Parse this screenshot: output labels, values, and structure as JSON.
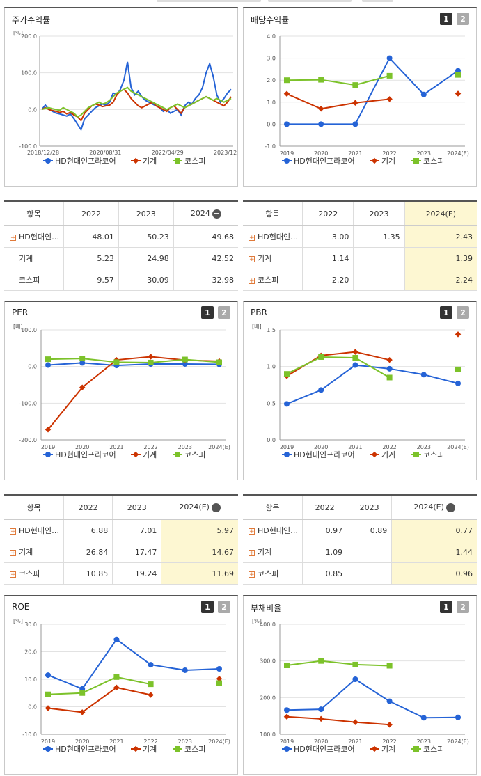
{
  "colors": {
    "hd": "#2563d6",
    "mach": "#cc3300",
    "kospi": "#7cc22a"
  },
  "panels": {
    "stock": {
      "title": "주가수익률"
    },
    "div": {
      "title": "배당수익률",
      "btn1": "1",
      "btn2": "2"
    },
    "per": {
      "title": "PER",
      "btn1": "1",
      "btn2": "2"
    },
    "pbr": {
      "title": "PBR",
      "btn1": "1",
      "btn2": "2"
    },
    "roe": {
      "title": "ROE",
      "btn1": "1",
      "btn2": "2"
    },
    "debt": {
      "title": "부채비율",
      "btn1": "1",
      "btn2": "2"
    }
  },
  "legend": {
    "hd": "HD현대인프라코어",
    "mach": "기계",
    "kospi": "코스피"
  },
  "tables": {
    "stock": {
      "h0": "항목",
      "h1": "2022",
      "h2": "2023",
      "h3": "2024",
      "rows": [
        {
          "name": "HD현대인…",
          "v1": "48.01",
          "v2": "50.23",
          "v3": "49.68"
        },
        {
          "name": "기계",
          "v1": "5.23",
          "v2": "24.98",
          "v3": "42.52"
        },
        {
          "name": "코스피",
          "v1": "9.57",
          "v2": "30.09",
          "v3": "32.98"
        }
      ]
    },
    "div": {
      "h0": "항목",
      "h1": "2022",
      "h2": "2023",
      "h3": "2024(E)",
      "rows": [
        {
          "name": "HD현대인…",
          "v1": "3.00",
          "v2": "1.35",
          "v3": "2.43"
        },
        {
          "name": "기계",
          "v1": "1.14",
          "v2": "",
          "v3": "1.39"
        },
        {
          "name": "코스피",
          "v1": "2.20",
          "v2": "",
          "v3": "2.24"
        }
      ]
    },
    "per": {
      "h0": "항목",
      "h1": "2022",
      "h2": "2023",
      "h3": "2024(E)",
      "rows": [
        {
          "name": "HD현대인…",
          "v1": "6.88",
          "v2": "7.01",
          "v3": "5.97"
        },
        {
          "name": "기계",
          "v1": "26.84",
          "v2": "17.47",
          "v3": "14.67"
        },
        {
          "name": "코스피",
          "v1": "10.85",
          "v2": "19.24",
          "v3": "11.69"
        }
      ]
    },
    "pbr": {
      "h0": "항목",
      "h1": "2022",
      "h2": "2023",
      "h3": "2024(E)",
      "rows": [
        {
          "name": "HD현대인…",
          "v1": "0.97",
          "v2": "0.89",
          "v3": "0.77"
        },
        {
          "name": "기계",
          "v1": "1.09",
          "v2": "",
          "v3": "1.44"
        },
        {
          "name": "코스피",
          "v1": "0.85",
          "v2": "",
          "v3": "0.96"
        }
      ]
    }
  },
  "chart_data": [
    {
      "id": "stock",
      "type": "line",
      "title": "주가수익률",
      "unit": "[%]",
      "ylim": [
        -100,
        200
      ],
      "yticks": [
        "200.0",
        "100.0",
        "0.0",
        "-100.0"
      ],
      "xticks": [
        "2018/12/28",
        "2020/08/31",
        "2022/04/29",
        "2023/12/28"
      ],
      "series": [
        {
          "name": "HD현대인프라코어",
          "values": [
            0,
            12,
            0,
            -5,
            -10,
            -12,
            -15,
            -18,
            -12,
            -25,
            -40,
            -55,
            -25,
            -15,
            -5,
            5,
            10,
            15,
            12,
            20,
            45,
            40,
            55,
            80,
            130,
            60,
            40,
            50,
            35,
            25,
            20,
            15,
            10,
            5,
            -5,
            0,
            -10,
            -5,
            0,
            -15,
            10,
            20,
            15,
            30,
            40,
            60,
            100,
            125,
            90,
            40,
            20,
            30,
            45,
            55
          ]
        },
        {
          "name": "기계",
          "values": [
            0,
            5,
            0,
            -3,
            -5,
            -8,
            -5,
            -12,
            -8,
            -15,
            -20,
            -30,
            -10,
            0,
            10,
            15,
            12,
            8,
            10,
            12,
            20,
            40,
            50,
            55,
            45,
            30,
            20,
            10,
            5,
            10,
            15,
            20,
            10,
            5,
            0,
            -5,
            5,
            10,
            0,
            -10,
            5,
            10,
            15,
            20,
            25,
            30,
            35,
            30,
            25,
            20,
            15,
            10,
            20,
            35
          ]
        },
        {
          "name": "코스피",
          "values": [
            0,
            3,
            5,
            2,
            0,
            -2,
            5,
            0,
            -5,
            -10,
            -20,
            -15,
            -5,
            5,
            10,
            15,
            20,
            15,
            18,
            25,
            35,
            45,
            50,
            55,
            60,
            50,
            45,
            40,
            35,
            30,
            25,
            20,
            15,
            10,
            5,
            0,
            5,
            10,
            15,
            10,
            5,
            10,
            15,
            20,
            25,
            30,
            35,
            30,
            25,
            30,
            25,
            20,
            25,
            30
          ]
        }
      ]
    },
    {
      "id": "div",
      "type": "line",
      "title": "배당수익률",
      "unit": "",
      "ylim": [
        -1,
        4
      ],
      "yticks": [
        "4.0",
        "3.0",
        "2.0",
        "1.0",
        "0.0",
        "-1.0"
      ],
      "categories": [
        "2019",
        "2020",
        "2021",
        "2022",
        "2023",
        "2024(E)"
      ],
      "series": [
        {
          "name": "HD현대인프라코어",
          "values": [
            0,
            0,
            0,
            3.0,
            1.35,
            2.43
          ],
          "mode": "line",
          "est": true
        },
        {
          "name": "기계",
          "values": [
            1.38,
            0.7,
            0.97,
            1.14,
            null,
            1.39
          ],
          "mode": "line",
          "est": false
        },
        {
          "name": "코스피",
          "values": [
            2.0,
            2.02,
            1.78,
            2.2,
            null,
            2.24
          ],
          "mode": "line",
          "est": false
        }
      ]
    },
    {
      "id": "per",
      "type": "line",
      "title": "PER",
      "unit": "[배]",
      "ylim": [
        -200,
        100
      ],
      "yticks": [
        "100.0",
        "0.0",
        "-100.0",
        "-200.0"
      ],
      "categories": [
        "2019",
        "2020",
        "2021",
        "2022",
        "2023",
        "2024(E)"
      ],
      "series": [
        {
          "name": "HD현대인프라코어",
          "values": [
            4,
            10,
            3,
            6.88,
            7.01,
            5.97
          ],
          "est": true
        },
        {
          "name": "기계",
          "values": [
            -172,
            -57,
            18,
            26.84,
            17.47,
            14.67
          ],
          "est": true
        },
        {
          "name": "코스피",
          "values": [
            20,
            22,
            12,
            10.85,
            19.24,
            11.69
          ],
          "est": true
        }
      ]
    },
    {
      "id": "pbr",
      "type": "line",
      "title": "PBR",
      "unit": "[배]",
      "ylim": [
        0,
        1.5
      ],
      "yticks": [
        "1.5",
        "1.0",
        "0.5",
        "0.0"
      ],
      "categories": [
        "2019",
        "2020",
        "2021",
        "2022",
        "2023",
        "2024(E)"
      ],
      "series": [
        {
          "name": "HD현대인프라코어",
          "values": [
            0.49,
            0.68,
            1.02,
            0.97,
            0.89,
            0.77
          ],
          "est": true
        },
        {
          "name": "기계",
          "values": [
            0.87,
            1.15,
            1.2,
            1.09,
            null,
            1.44
          ],
          "est": false
        },
        {
          "name": "코스피",
          "values": [
            0.9,
            1.13,
            1.12,
            0.85,
            null,
            0.96
          ],
          "est": false
        }
      ]
    },
    {
      "id": "roe",
      "type": "line",
      "title": "ROE",
      "unit": "[%]",
      "ylim": [
        -10,
        30
      ],
      "yticks": [
        "30.0",
        "20.0",
        "10.0",
        "0.0",
        "-10.0"
      ],
      "categories": [
        "2019",
        "2020",
        "2021",
        "2022",
        "2023",
        "2024(E)"
      ],
      "series": [
        {
          "name": "HD현대인프라코어",
          "values": [
            11.5,
            6.5,
            24.5,
            15.3,
            13.3,
            13.8
          ],
          "est": true
        },
        {
          "name": "기계",
          "values": [
            -0.5,
            -2,
            7,
            4.3,
            null,
            10.2
          ],
          "est": false
        },
        {
          "name": "코스피",
          "values": [
            4.5,
            5,
            10.8,
            8.2,
            null,
            8.6
          ],
          "est": false
        }
      ]
    },
    {
      "id": "debt",
      "type": "line",
      "title": "부채비율",
      "unit": "[%]",
      "ylim": [
        100,
        400
      ],
      "yticks": [
        "400.0",
        "300.0",
        "200.0",
        "100.0"
      ],
      "categories": [
        "2019",
        "2020",
        "2021",
        "2022",
        "2023",
        "2024(E)"
      ],
      "series": [
        {
          "name": "HD현대인프라코어",
          "values": [
            166,
            168,
            250,
            190,
            145,
            146
          ],
          "est": true
        },
        {
          "name": "기계",
          "values": [
            148,
            142,
            133,
            126,
            null,
            null
          ],
          "est": false
        },
        {
          "name": "코스피",
          "values": [
            288,
            300,
            290,
            287,
            null,
            null
          ],
          "est": false
        }
      ]
    }
  ]
}
